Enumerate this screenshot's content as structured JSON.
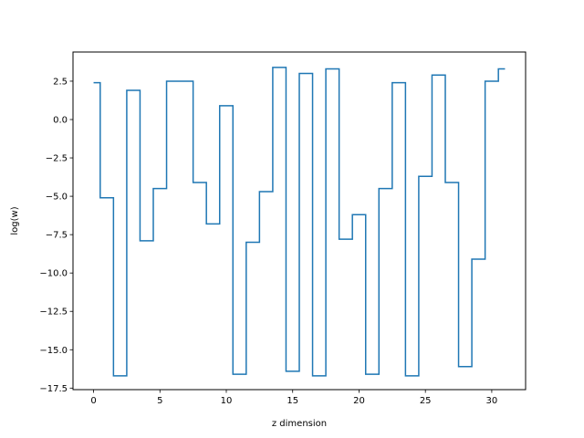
{
  "chart_data": {
    "type": "line",
    "drawstyle": "steps-mid",
    "title": "",
    "xlabel": "z dimension",
    "ylabel": "log(w)",
    "xlim": [
      -1.55,
      32.55
    ],
    "ylim": [
      -17.6,
      4.4
    ],
    "grid": false,
    "legend": "none",
    "xticks": [
      0,
      5,
      10,
      15,
      20,
      25,
      30
    ],
    "xtick_labels": [
      "0",
      "5",
      "10",
      "15",
      "20",
      "25",
      "30"
    ],
    "yticks": [
      2.5,
      0.0,
      -2.5,
      -5.0,
      -7.5,
      -10.0,
      -12.5,
      -15.0,
      -17.5
    ],
    "ytick_labels": [
      "2.5",
      "0.0",
      "−2.5",
      "−5.0",
      "−7.5",
      "−10.0",
      "−12.5",
      "−15.0",
      "−17.5"
    ],
    "series": [
      {
        "color": "#1f77b4",
        "x": [
          0,
          1,
          2,
          3,
          4,
          5,
          6,
          7,
          8,
          9,
          10,
          11,
          12,
          13,
          14,
          15,
          16,
          17,
          18,
          19,
          20,
          21,
          22,
          23,
          24,
          25,
          26,
          27,
          28,
          29,
          30,
          31
        ],
        "y": [
          2.4,
          -5.1,
          -16.7,
          1.9,
          -7.9,
          -4.5,
          2.5,
          2.5,
          -4.1,
          -6.8,
          0.9,
          -16.6,
          -8.0,
          -4.7,
          3.4,
          -16.4,
          3.0,
          -16.7,
          3.3,
          -7.8,
          -6.2,
          -16.6,
          -4.5,
          2.4,
          -16.7,
          -3.7,
          2.9,
          -4.1,
          -16.1,
          -9.1,
          2.5,
          3.3
        ]
      }
    ]
  }
}
